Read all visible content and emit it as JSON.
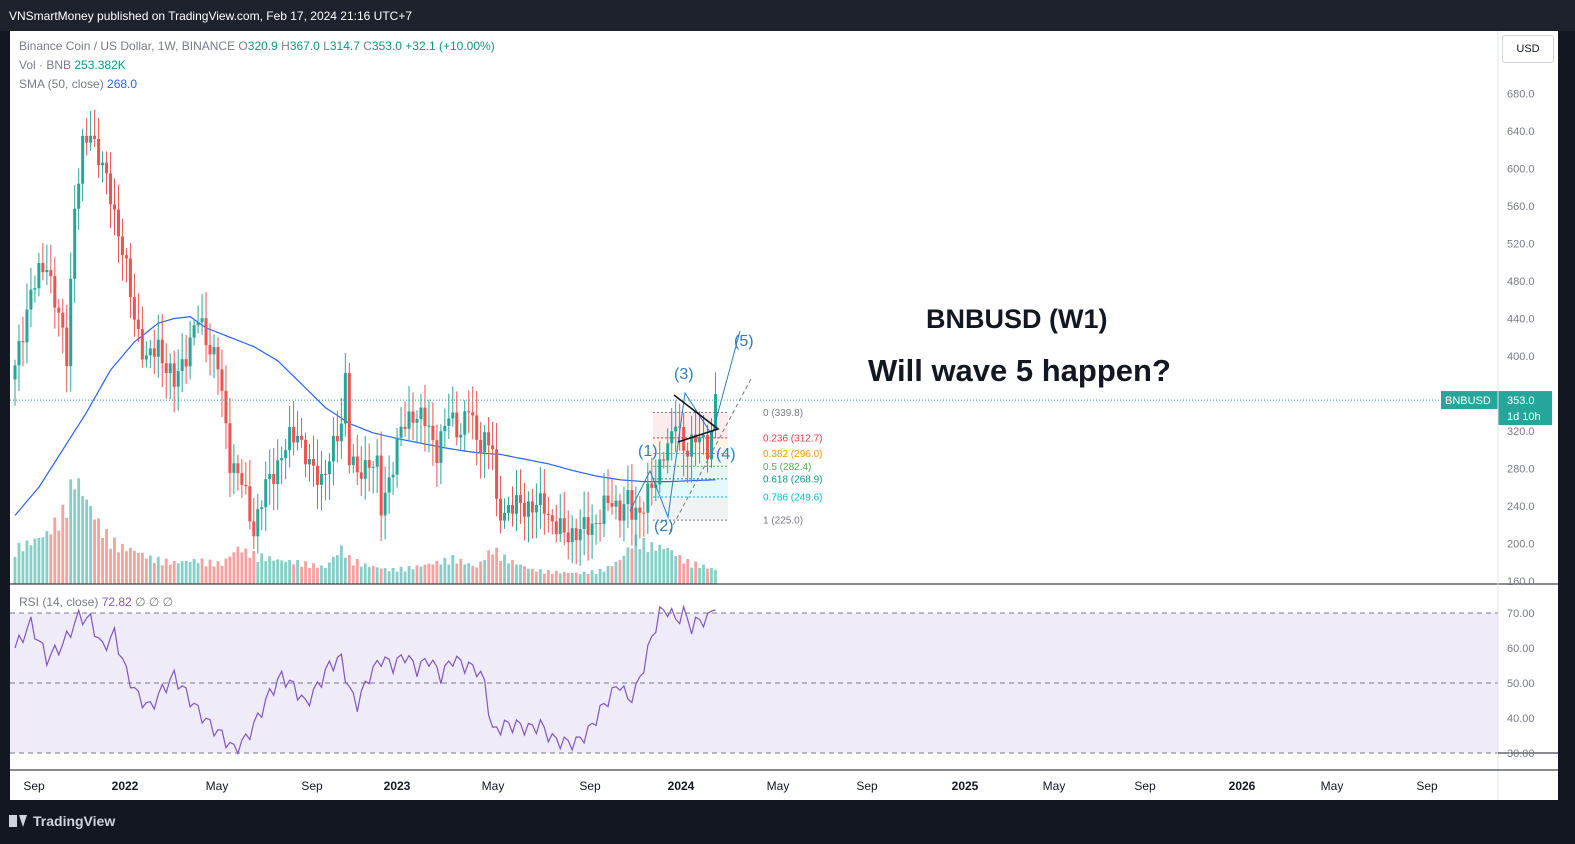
{
  "header": {
    "published": "VNSmartMoney published on TradingView.com, Feb 17, 2024 21:16 UTC+7"
  },
  "legend": {
    "symbol": "Binance Coin / US Dollar, 1W, BINANCE",
    "o_label": "O",
    "o_val": "320.9",
    "h_label": "H",
    "h_val": "367.0",
    "l_label": "L",
    "l_val": "314.7",
    "c_label": "C",
    "c_val": "353.0",
    "change": "+32.1 (+10.00%)",
    "vol_label": "Vol · BNB",
    "vol_val": "253.382K",
    "sma_label": "SMA (50, close)",
    "sma_val": "268.0",
    "rsi_label": "RSI (14, close)",
    "rsi_val": "72.82",
    "rsi_extra": "∅ ∅ ∅"
  },
  "currency": "USD",
  "price_tag": {
    "symbol": "BNBUSD",
    "price": "353.0",
    "countdown": "1d 10h"
  },
  "annotations": {
    "title": "BNBUSD (W1)",
    "question": "Will wave 5 happen?"
  },
  "waves": [
    "(1)",
    "(2)",
    "(3)",
    "(4)",
    "(5)"
  ],
  "fib": [
    {
      "level": 0,
      "label": "0 (339.8)",
      "price": 339.8,
      "color": "#787b86"
    },
    {
      "level": 0.236,
      "label": "0.236 (312.7)",
      "price": 312.7,
      "color": "#f23645"
    },
    {
      "level": 0.382,
      "label": "0.382 (296.0)",
      "price": 296.0,
      "color": "#ff9800"
    },
    {
      "level": 0.5,
      "label": "0.5 (282.4)",
      "price": 282.4,
      "color": "#4caf50"
    },
    {
      "level": 0.618,
      "label": "0.618 (268.9)",
      "price": 268.9,
      "color": "#089981"
    },
    {
      "level": 0.786,
      "label": "0.786 (249.6)",
      "price": 249.6,
      "color": "#00bcd4"
    },
    {
      "level": 1,
      "label": "1 (225.0)",
      "price": 225.0,
      "color": "#787b86"
    }
  ],
  "footer": {
    "brand": "TradingView"
  },
  "colors": {
    "up": "#26a69a",
    "down": "#ef5350",
    "sma": "#2962ff",
    "rsi": "#7e57c2",
    "wave": "#2e7dbf"
  },
  "chart_data": {
    "type": "candlestick",
    "price_axis": {
      "ticks": [
        160,
        200,
        240,
        280,
        320,
        360,
        400,
        440,
        480,
        520,
        560,
        600,
        640,
        680
      ],
      "tick_labels": [
        "160.0",
        "200.0",
        "240.0",
        "280.0",
        "320.0",
        "",
        "400.0",
        "440.0",
        "480.0",
        "520.0",
        "560.0",
        "600.0",
        "640.0",
        "680.0"
      ]
    },
    "rsi_axis": {
      "ticks": [
        30,
        40,
        50,
        60,
        70
      ],
      "tick_labels": [
        "30.00",
        "40.00",
        "50.00",
        "60.00",
        "70.00"
      ],
      "overbought": 70,
      "oversold": 30,
      "mid": 50
    },
    "time_labels": [
      "Sep",
      "2022",
      "May",
      "Sep",
      "2023",
      "May",
      "Sep",
      "2024",
      "May",
      "Sep",
      "2025",
      "May",
      "Sep",
      "2026",
      "May",
      "Sep"
    ],
    "time_bold": [
      false,
      true,
      false,
      false,
      true,
      false,
      false,
      true,
      false,
      false,
      true,
      false,
      false,
      true,
      false,
      false
    ],
    "close_anchors": [
      [
        0,
        385
      ],
      [
        4,
        470
      ],
      [
        8,
        500
      ],
      [
        10,
        460
      ],
      [
        13,
        400
      ],
      [
        15,
        560
      ],
      [
        17,
        620
      ],
      [
        19,
        640
      ],
      [
        21,
        615
      ],
      [
        24,
        570
      ],
      [
        27,
        515
      ],
      [
        30,
        440
      ],
      [
        33,
        395
      ],
      [
        36,
        410
      ],
      [
        40,
        370
      ],
      [
        44,
        415
      ],
      [
        46,
        440
      ],
      [
        48,
        420
      ],
      [
        51,
        390
      ],
      [
        54,
        290
      ],
      [
        57,
        265
      ],
      [
        60,
        215
      ],
      [
        63,
        260
      ],
      [
        66,
        285
      ],
      [
        69,
        310
      ],
      [
        71,
        320
      ],
      [
        74,
        280
      ],
      [
        77,
        270
      ],
      [
        80,
        300
      ],
      [
        82,
        330
      ],
      [
        83,
        380
      ],
      [
        84,
        295
      ],
      [
        86,
        270
      ],
      [
        89,
        290
      ],
      [
        91,
        280
      ],
      [
        92,
        235
      ],
      [
        94,
        270
      ],
      [
        97,
        320
      ],
      [
        100,
        340
      ],
      [
        103,
        330
      ],
      [
        106,
        300
      ],
      [
        109,
        335
      ],
      [
        112,
        320
      ],
      [
        114,
        345
      ],
      [
        116,
        310
      ],
      [
        118,
        312
      ],
      [
        120,
        300
      ],
      [
        121,
        236
      ],
      [
        124,
        236
      ],
      [
        127,
        242
      ],
      [
        130,
        238
      ],
      [
        133,
        242
      ],
      [
        135,
        222
      ],
      [
        138,
        210
      ],
      [
        141,
        212
      ],
      [
        143,
        215
      ],
      [
        146,
        223
      ],
      [
        148,
        238
      ],
      [
        150,
        245
      ],
      [
        152,
        236
      ],
      [
        154,
        245
      ],
      [
        155,
        232
      ],
      [
        157,
        236
      ],
      [
        159,
        252
      ],
      [
        161,
        265
      ],
      [
        163,
        302
      ],
      [
        165,
        310
      ],
      [
        166,
        330
      ],
      [
        168,
        303
      ],
      [
        170,
        306
      ],
      [
        172,
        312
      ],
      [
        174,
        304
      ],
      [
        175,
        320
      ],
      [
        176,
        353
      ]
    ],
    "sma_anchors": [
      [
        0,
        230
      ],
      [
        6,
        260
      ],
      [
        12,
        300
      ],
      [
        18,
        340
      ],
      [
        24,
        385
      ],
      [
        30,
        415
      ],
      [
        36,
        435
      ],
      [
        40,
        440
      ],
      [
        44,
        442
      ],
      [
        48,
        430
      ],
      [
        54,
        420
      ],
      [
        60,
        410
      ],
      [
        66,
        395
      ],
      [
        72,
        370
      ],
      [
        78,
        345
      ],
      [
        84,
        328
      ],
      [
        90,
        318
      ],
      [
        96,
        312
      ],
      [
        102,
        307
      ],
      [
        108,
        302
      ],
      [
        114,
        298
      ],
      [
        118,
        296
      ],
      [
        122,
        295
      ],
      [
        128,
        290
      ],
      [
        134,
        285
      ],
      [
        140,
        278
      ],
      [
        146,
        272
      ],
      [
        152,
        268
      ],
      [
        158,
        266
      ],
      [
        164,
        266
      ],
      [
        170,
        267
      ],
      [
        176,
        268
      ]
    ],
    "rsi_anchors": [
      [
        0,
        60
      ],
      [
        4,
        67
      ],
      [
        8,
        57
      ],
      [
        12,
        61
      ],
      [
        16,
        69
      ],
      [
        19,
        68
      ],
      [
        22,
        60
      ],
      [
        25,
        64
      ],
      [
        28,
        53
      ],
      [
        31,
        46
      ],
      [
        34,
        43
      ],
      [
        37,
        48
      ],
      [
        40,
        52
      ],
      [
        43,
        47
      ],
      [
        46,
        42
      ],
      [
        49,
        38
      ],
      [
        52,
        35
      ],
      [
        55,
        31
      ],
      [
        58,
        34
      ],
      [
        61,
        40
      ],
      [
        64,
        47
      ],
      [
        67,
        52
      ],
      [
        70,
        49
      ],
      [
        73,
        44
      ],
      [
        76,
        49
      ],
      [
        79,
        55
      ],
      [
        82,
        57
      ],
      [
        84,
        48
      ],
      [
        86,
        44
      ],
      [
        89,
        52
      ],
      [
        92,
        57
      ],
      [
        95,
        55
      ],
      [
        98,
        58
      ],
      [
        101,
        54
      ],
      [
        104,
        57
      ],
      [
        107,
        52
      ],
      [
        110,
        57
      ],
      [
        113,
        55
      ],
      [
        116,
        54
      ],
      [
        118,
        50
      ],
      [
        120,
        36
      ],
      [
        123,
        38
      ],
      [
        126,
        38
      ],
      [
        129,
        37
      ],
      [
        132,
        38
      ],
      [
        135,
        34
      ],
      [
        138,
        33
      ],
      [
        141,
        33
      ],
      [
        144,
        36
      ],
      [
        147,
        42
      ],
      [
        150,
        47
      ],
      [
        152,
        50
      ],
      [
        154,
        45
      ],
      [
        156,
        48
      ],
      [
        158,
        55
      ],
      [
        160,
        63
      ],
      [
        162,
        70
      ],
      [
        164,
        71
      ],
      [
        166,
        68
      ],
      [
        168,
        70
      ],
      [
        170,
        66
      ],
      [
        172,
        68
      ],
      [
        174,
        68
      ],
      [
        176,
        72.82
      ]
    ],
    "volume_anchors": [
      [
        0,
        0.3
      ],
      [
        4,
        0.35
      ],
      [
        8,
        0.42
      ],
      [
        12,
        0.6
      ],
      [
        15,
        0.9
      ],
      [
        18,
        0.7
      ],
      [
        22,
        0.45
      ],
      [
        26,
        0.32
      ],
      [
        30,
        0.28
      ],
      [
        34,
        0.22
      ],
      [
        40,
        0.18
      ],
      [
        46,
        0.2
      ],
      [
        52,
        0.17
      ],
      [
        56,
        0.3
      ],
      [
        60,
        0.25
      ],
      [
        66,
        0.2
      ],
      [
        72,
        0.18
      ],
      [
        78,
        0.14
      ],
      [
        82,
        0.3
      ],
      [
        84,
        0.22
      ],
      [
        88,
        0.16
      ],
      [
        94,
        0.12
      ],
      [
        100,
        0.14
      ],
      [
        106,
        0.18
      ],
      [
        110,
        0.22
      ],
      [
        116,
        0.14
      ],
      [
        120,
        0.3
      ],
      [
        124,
        0.2
      ],
      [
        130,
        0.12
      ],
      [
        136,
        0.1
      ],
      [
        142,
        0.09
      ],
      [
        148,
        0.12
      ],
      [
        152,
        0.2
      ],
      [
        156,
        0.38
      ],
      [
        160,
        0.32
      ],
      [
        164,
        0.3
      ],
      [
        168,
        0.2
      ],
      [
        172,
        0.16
      ],
      [
        176,
        0.12
      ]
    ]
  }
}
